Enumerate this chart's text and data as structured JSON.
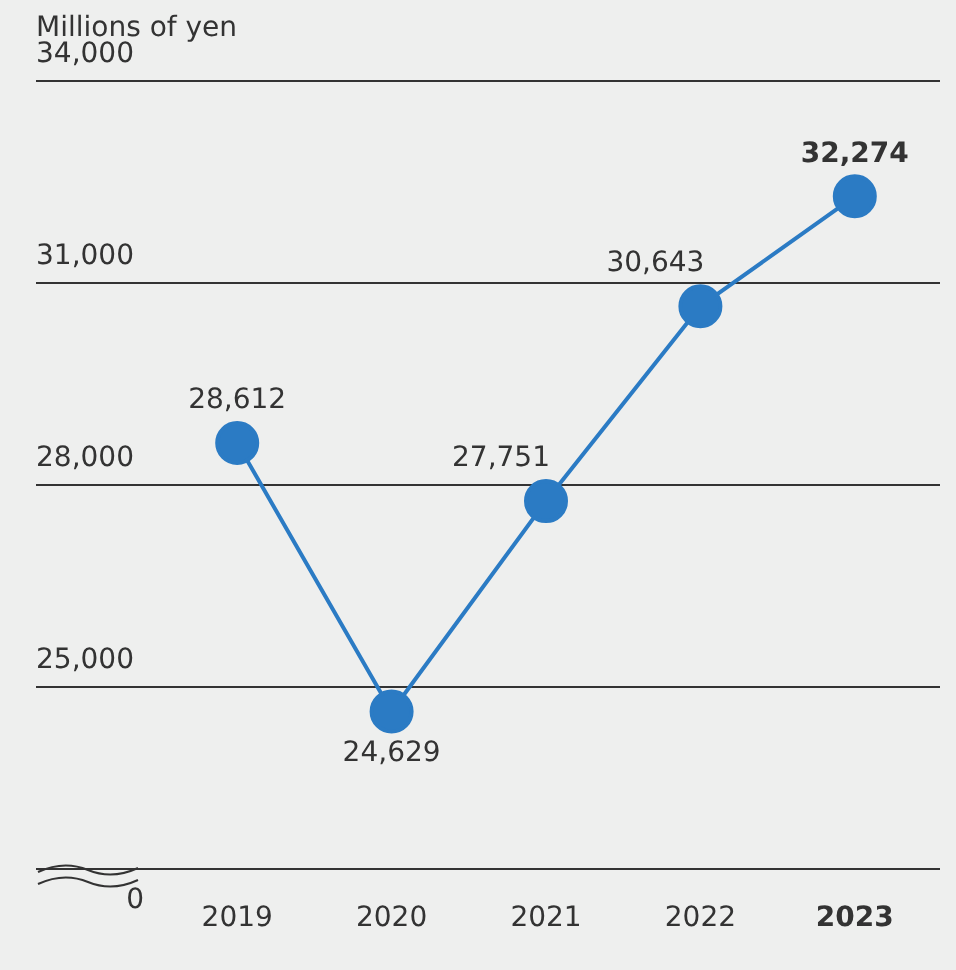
{
  "chart_data": {
    "type": "line",
    "ylabel": "Millions of yen",
    "categories": [
      "2019",
      "2020",
      "2021",
      "2022",
      "2023"
    ],
    "values": [
      28612,
      24629,
      27751,
      30643,
      32274
    ],
    "value_labels": [
      "28,612",
      "24,629",
      "27,751",
      "30,643",
      "32,274"
    ],
    "color": "#2b7bc4",
    "ylim": [
      22300,
      34000
    ],
    "yticks": [
      {
        "value": 25000,
        "label": "25,000"
      },
      {
        "value": 28000,
        "label": "28,000"
      },
      {
        "value": 31000,
        "label": "31,000"
      },
      {
        "value": 34000,
        "label": "34,000"
      }
    ],
    "annotations": [
      "0"
    ],
    "grid": "y",
    "marker": "circle"
  }
}
